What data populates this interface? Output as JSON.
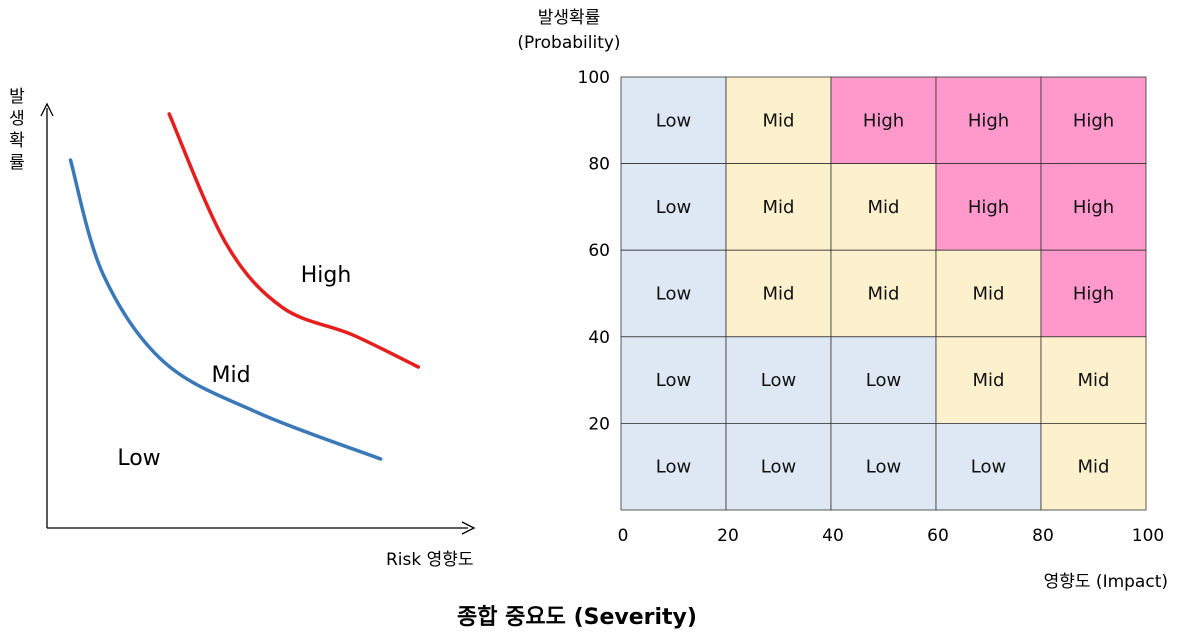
{
  "caption": "종합 중요도 (Severity)",
  "chart_data": [
    {
      "type": "line",
      "title": "",
      "ylabel": "발생확률",
      "xlabel": "Risk 영향도",
      "grid": false,
      "colors": {
        "low_boundary": "#3a78b8",
        "high_boundary": "#e51e1e"
      },
      "series": [
        {
          "values": [
            [
              0.05,
              0.8
            ],
            [
              0.12,
              0.55
            ],
            [
              0.25,
              0.36
            ],
            [
              0.45,
              0.25
            ],
            [
              0.71,
              0.15
            ]
          ]
        },
        {
          "values": [
            [
              0.26,
              0.9
            ],
            [
              0.38,
              0.62
            ],
            [
              0.5,
              0.48
            ],
            [
              0.65,
              0.42
            ],
            [
              0.79,
              0.35
            ]
          ]
        }
      ],
      "region_labels": [
        "High",
        "Mid",
        "Low"
      ]
    },
    {
      "type": "heatmap",
      "title": "",
      "ylabel_line1": "발생확률",
      "ylabel_line2": "(Probability)",
      "xlabel": "영향도 (Impact)",
      "xlim": [
        0,
        100
      ],
      "ylim": [
        0,
        100
      ],
      "x_ticks": [
        "0",
        "20",
        "40",
        "60",
        "80",
        "100"
      ],
      "y_ticks": [
        "20",
        "40",
        "60",
        "80",
        "100"
      ],
      "row_order": "top-to-bottom",
      "colors": {
        "Low": "#dde8f4",
        "Mid": "#fdf1cd",
        "High": "#ff99cc",
        "grid_line": "#333333"
      },
      "cells": [
        [
          "Low",
          "Mid",
          "High",
          "High",
          "High"
        ],
        [
          "Low",
          "Mid",
          "Mid",
          "High",
          "High"
        ],
        [
          "Low",
          "Mid",
          "Mid",
          "Mid",
          "High"
        ],
        [
          "Low",
          "Low",
          "Low",
          "Mid",
          "Mid"
        ],
        [
          "Low",
          "Low",
          "Low",
          "Low",
          "Mid"
        ]
      ]
    }
  ]
}
